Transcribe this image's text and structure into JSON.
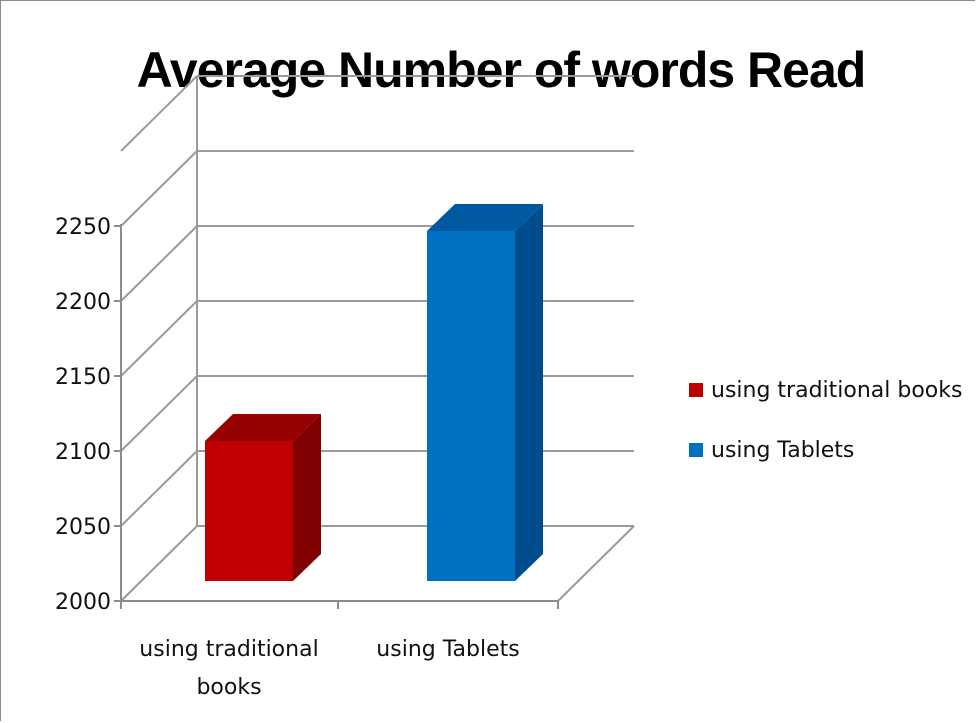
{
  "chart_data": {
    "type": "bar",
    "title": "Average Number of words Read",
    "categories": [
      "using traditional books",
      "using Tablets"
    ],
    "category_labels": [
      [
        "using traditional",
        "books"
      ],
      [
        "using Tablets"
      ]
    ],
    "values": [
      2110,
      2250
    ],
    "ylim": [
      2000,
      2250
    ],
    "yticks": [
      "2000",
      "2050",
      "2100",
      "2150",
      "2200",
      "2250"
    ],
    "xlabel": "",
    "ylabel": "",
    "grid": true,
    "legend_position": "right",
    "colors": [
      "#c00000",
      "#0070c0"
    ],
    "legend": [
      "using traditional books",
      "using Tablets"
    ]
  }
}
